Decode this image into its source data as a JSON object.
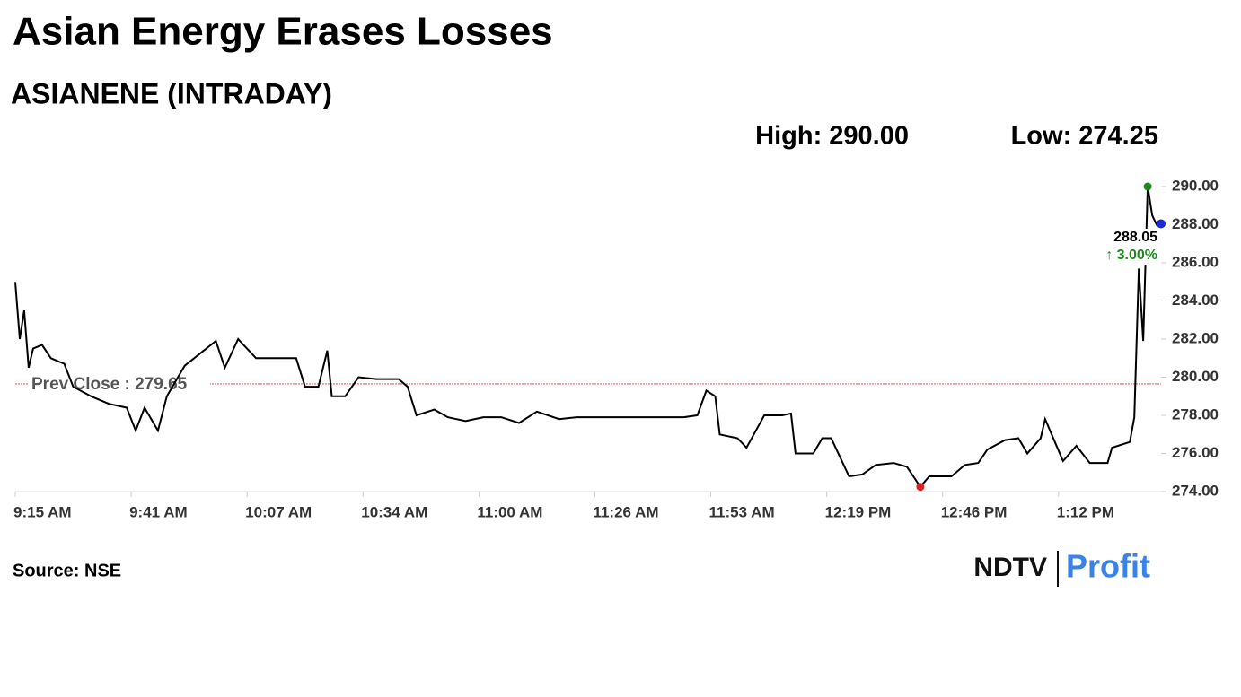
{
  "chart_data": {
    "type": "line",
    "title": "Asian Energy Erases Losses",
    "subtitle": "ASIANENE (INTRADAY)",
    "high": {
      "value": 290,
      "label": "High: 290.00"
    },
    "low": {
      "value": 274.25,
      "label": "Low: 274.25"
    },
    "prev_close": {
      "value": 279.65,
      "label": "Prev Close : 279.65"
    },
    "last": {
      "value": 288.05,
      "label": "288.05"
    },
    "change": {
      "value": 3.0,
      "label": "↑ 3.00%"
    },
    "source": "Source: NSE",
    "logo": {
      "left": "NDTV",
      "right": "Profit"
    },
    "x": [
      555,
      556,
      557,
      558,
      559,
      561,
      563,
      566,
      568,
      572,
      576,
      580,
      582,
      584,
      587,
      589,
      593,
      600,
      602,
      605,
      609,
      618,
      620,
      623,
      625,
      626,
      629,
      632,
      636,
      641,
      643,
      645,
      649,
      652,
      656,
      660,
      664,
      668,
      672,
      677,
      681,
      685,
      691,
      697,
      705,
      708,
      710,
      712,
      713,
      717,
      719,
      723,
      727,
      729,
      730,
      734,
      736,
      738,
      742,
      745,
      748,
      752,
      755,
      758,
      760,
      765,
      768,
      771,
      773,
      777,
      780,
      782,
      785,
      786,
      790,
      793,
      796,
      800,
      801,
      805,
      806,
      807,
      808,
      809,
      810,
      811,
      812
    ],
    "series": [
      {
        "name": "ASIANENE",
        "color": "#000000",
        "values": [
          285.0,
          282.0,
          283.5,
          280.5,
          281.5,
          281.7,
          281.0,
          280.7,
          279.5,
          279.0,
          278.6,
          278.4,
          277.2,
          278.4,
          277.2,
          279.0,
          280.6,
          281.9,
          280.5,
          282.0,
          281.0,
          281.0,
          279.5,
          279.5,
          281.4,
          279.0,
          279.0,
          280.0,
          279.9,
          279.9,
          279.5,
          278.0,
          278.3,
          277.9,
          277.7,
          277.9,
          277.9,
          277.6,
          278.2,
          277.8,
          277.9,
          277.9,
          277.9,
          277.9,
          277.9,
          278.0,
          279.3,
          279.0,
          277.0,
          276.8,
          276.3,
          278.0,
          278.0,
          278.1,
          276.0,
          276.0,
          276.8,
          276.8,
          274.8,
          274.9,
          275.4,
          275.5,
          275.3,
          274.25,
          274.8,
          274.8,
          275.4,
          275.5,
          276.2,
          276.7,
          276.8,
          276.0,
          276.8,
          277.8,
          275.6,
          276.4,
          275.5,
          275.5,
          276.3,
          276.6,
          277.9,
          285.7,
          281.9,
          290.0,
          288.5,
          288.0,
          288.05
        ]
      }
    ],
    "xlim": [
      555,
      812
    ],
    "xticks": [
      {
        "value": 555,
        "label": "9:15 AM"
      },
      {
        "value": 581,
        "label": "9:41 AM"
      },
      {
        "value": 607,
        "label": "10:07 AM"
      },
      {
        "value": 633,
        "label": "10:34 AM"
      },
      {
        "value": 659,
        "label": "11:00 AM"
      },
      {
        "value": 685,
        "label": "11:26 AM"
      },
      {
        "value": 711,
        "label": "11:53 AM"
      },
      {
        "value": 737,
        "label": "12:19 PM"
      },
      {
        "value": 763,
        "label": "12:46 PM"
      },
      {
        "value": 789,
        "label": "1:12 PM"
      }
    ],
    "ylim": [
      274,
      290
    ],
    "yticks": [
      {
        "value": 274,
        "label": "274.00"
      },
      {
        "value": 276,
        "label": "276.00"
      },
      {
        "value": 278,
        "label": "278.00"
      },
      {
        "value": 280,
        "label": "280.00"
      },
      {
        "value": 282,
        "label": "282.00"
      },
      {
        "value": 284,
        "label": "284.00"
      },
      {
        "value": 286,
        "label": "286.00"
      },
      {
        "value": 288,
        "label": "288.00"
      },
      {
        "value": 290,
        "label": "290.00"
      }
    ]
  }
}
